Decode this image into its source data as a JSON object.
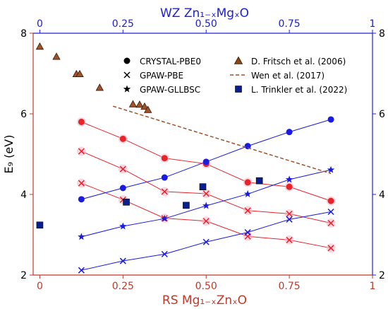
{
  "chart_data": {
    "type": "line",
    "top_axis_label": "WZ Zn₁₋ₓMgₓO",
    "bottom_axis_label": "RS Mg₁₋ₓZnₓO",
    "ylabel": "E₉ (eV)",
    "xlim": [
      -0.02,
      1.0
    ],
    "ylim": [
      2,
      8
    ],
    "x_ticks": [
      0,
      0.25,
      0.5,
      0.75,
      1
    ],
    "x_tick_labels": [
      "0",
      "0.25",
      "0.50",
      "0.75",
      "1"
    ],
    "y_ticks": [
      2,
      4,
      6,
      8
    ],
    "y_tick_labels": [
      "2",
      "4",
      "6",
      "8"
    ],
    "grid": false,
    "legend_position": "top-right",
    "colors": {
      "red": "#e8232a",
      "blue": "#1a1ae0",
      "brown": "#a0522d",
      "navy": "#0a1f8f",
      "rs_axis": "#c0392b",
      "wz_axis": "#2020d0"
    },
    "legend": [
      {
        "label": "CRYSTAL-PBE0",
        "marker": "circle",
        "color": "#000000"
      },
      {
        "label": "GPAW-PBE",
        "marker": "x",
        "color": "#000000"
      },
      {
        "label": "GPAW-GLLBSC",
        "marker": "star",
        "color": "#000000"
      },
      {
        "label": "D. Fritsch et al. (2006)",
        "marker": "triangle",
        "color": "#8b4513"
      },
      {
        "label": "Wen et al. (2017)",
        "marker": "dashed",
        "color": "#a0522d"
      },
      {
        "label": "L. Trinkler et al. (2022)",
        "marker": "square",
        "color": "#0a1f8f"
      }
    ],
    "series": [
      {
        "group": "RS",
        "method": "CRYSTAL-PBE0",
        "marker": "circle",
        "color": "#e8232a",
        "x": [
          0.125,
          0.25,
          0.375,
          0.5,
          0.625,
          0.75,
          0.875
        ],
        "y": [
          5.8,
          5.38,
          4.9,
          4.76,
          4.3,
          4.19,
          3.84
        ]
      },
      {
        "group": "RS",
        "method": "GPAW-GLLBSC",
        "marker": "x",
        "color": "#e8232a",
        "x": [
          0.125,
          0.25,
          0.375,
          0.5,
          0.625,
          0.75,
          0.875
        ],
        "y": [
          5.07,
          4.63,
          4.07,
          4.02,
          3.6,
          3.52,
          3.29
        ]
      },
      {
        "group": "RS",
        "method": "GPAW-PBE",
        "marker": "x",
        "color": "#e8232a",
        "x": [
          0.125,
          0.25,
          0.375,
          0.5,
          0.625,
          0.75,
          0.875
        ],
        "y": [
          4.28,
          3.87,
          3.41,
          3.34,
          2.96,
          2.87,
          2.67
        ]
      },
      {
        "group": "WZ",
        "method": "CRYSTAL-PBE0",
        "marker": "circle",
        "color": "#1a1ae0",
        "x": [
          0.125,
          0.25,
          0.375,
          0.5,
          0.625,
          0.75,
          0.875
        ],
        "y": [
          3.88,
          4.16,
          4.42,
          4.81,
          5.2,
          5.55,
          5.86
        ]
      },
      {
        "group": "WZ",
        "method": "GPAW-GLLBSC",
        "marker": "star",
        "color": "#1a1ae0",
        "x": [
          0.125,
          0.25,
          0.375,
          0.5,
          0.625,
          0.75,
          0.875
        ],
        "y": [
          2.95,
          3.21,
          3.4,
          3.72,
          4.01,
          4.37,
          4.61
        ]
      },
      {
        "group": "WZ",
        "method": "GPAW-PBE",
        "marker": "x",
        "color": "#1a1ae0",
        "x": [
          0.125,
          0.25,
          0.375,
          0.5,
          0.625,
          0.75,
          0.875
        ],
        "y": [
          2.12,
          2.35,
          2.52,
          2.82,
          3.06,
          3.38,
          3.57
        ]
      }
    ],
    "fritsch": {
      "x": [
        0.0,
        0.05,
        0.11,
        0.12,
        0.18,
        0.28,
        0.3,
        0.315,
        0.325
      ],
      "y": [
        7.67,
        7.42,
        6.99,
        6.99,
        6.65,
        6.24,
        6.23,
        6.18,
        6.1
      ]
    },
    "wen": {
      "x": [
        0.22,
        0.875
      ],
      "y": [
        6.19,
        4.52
      ]
    },
    "trinkler": {
      "x": [
        0.0,
        0.26,
        0.44,
        0.49,
        0.66
      ],
      "y": [
        3.24,
        3.81,
        3.73,
        4.19,
        4.34
      ]
    }
  }
}
